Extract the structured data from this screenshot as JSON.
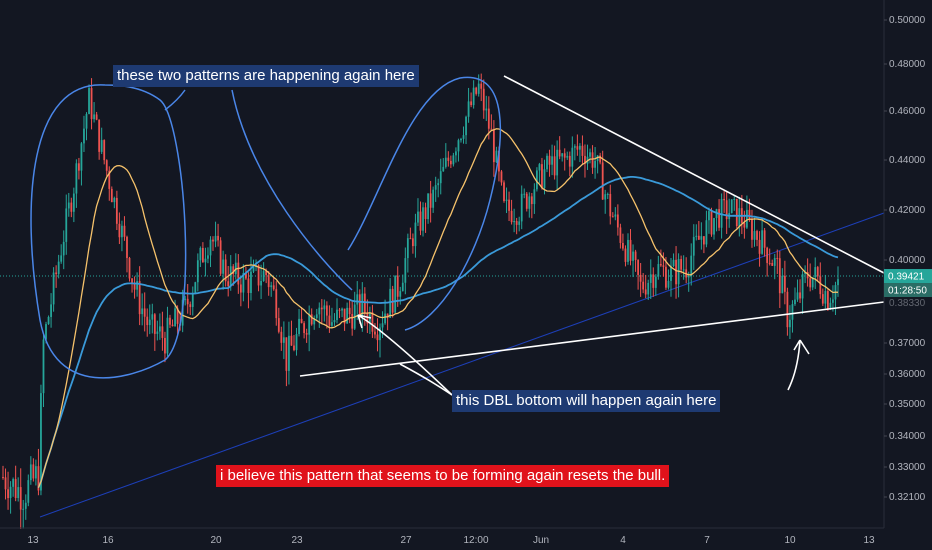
{
  "chart_data": {
    "type": "candlestick",
    "y_axis": {
      "range": [
        0.315,
        0.505
      ],
      "ticks": [
        "0.50000",
        "0.48000",
        "0.46000",
        "0.44000",
        "0.42000",
        "0.40000",
        "0.37000",
        "0.36000",
        "0.35000",
        "0.34000",
        "0.33000",
        "0.32100"
      ],
      "tick_values": [
        0.5,
        0.48,
        0.46,
        0.44,
        0.42,
        0.4,
        0.37,
        0.36,
        0.35,
        0.34,
        0.33,
        0.321
      ]
    },
    "x_axis": {
      "ticks": [
        "13",
        "16",
        "20",
        "23",
        "27",
        "12:00",
        "Jun",
        "4",
        "7",
        "10",
        "13"
      ]
    },
    "current_price": "0.39421",
    "current_price_value": 0.39421,
    "countdown": "01:28:50",
    "hidden_label": "0.38330",
    "colors": {
      "up": "#26a69a",
      "down": "#ef5350",
      "ma_short": "#f6c26b",
      "ma_long": "#3a9ad9",
      "trendline_blue": "#1d3fb8",
      "annotation_white": "#ffffff",
      "drawing_blue": "#4a86e8",
      "price_badge": "#26a69a",
      "countdown_badge": "#2a6d66"
    },
    "grid": false,
    "annotations": [
      "these two patterns are happening again here",
      "this DBL bottom will happen again here",
      "i believe this pattern that seems to be forming again resets the bull."
    ]
  }
}
